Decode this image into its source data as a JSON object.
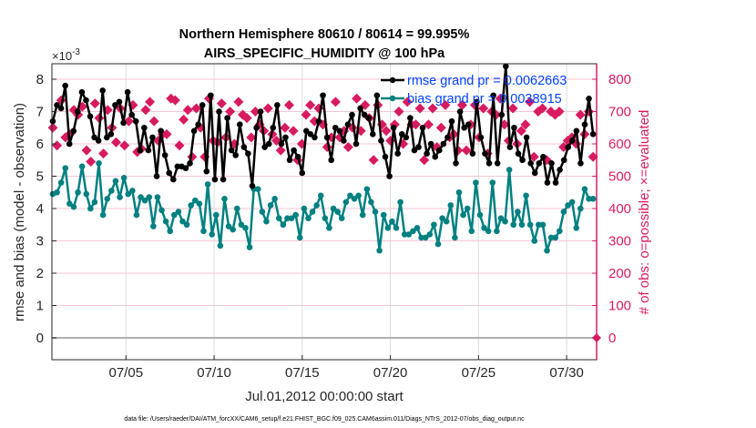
{
  "chart_data": {
    "type": "line",
    "title": [
      "Northern Hemisphere 80610 / 80614 = 99.995%",
      "AIRS_SPECIFIC_HUMIDITY @ 100 hPa"
    ],
    "xlabel": "Jul.01,2012 00:00:00 start",
    "ylabel_left": "rmse and bias (model - observation)",
    "ylabel_right": "# of obs: o=possible; ×=evaluated",
    "left_exponent": "×10",
    "left_exponent_power": "-3",
    "xlim_days": [
      0.8,
      31.7
    ],
    "ylim_left": [
      -1.4,
      8.5
    ],
    "ylim_right": [
      -140,
      850
    ],
    "x_start_day": 0.85,
    "x_end_day": 31.5,
    "xticks": [
      {
        "day": 5,
        "label": "07/05"
      },
      {
        "day": 10,
        "label": "07/10"
      },
      {
        "day": 15,
        "label": "07/15"
      },
      {
        "day": 20,
        "label": "07/20"
      },
      {
        "day": 25,
        "label": "07/25"
      },
      {
        "day": 30,
        "label": "07/30"
      }
    ],
    "yticks_left": [
      "0",
      "1",
      "2",
      "3",
      "4",
      "5",
      "6",
      "7",
      "8"
    ],
    "yticks_right": [
      "0",
      "100",
      "200",
      "300",
      "400",
      "500",
      "600",
      "700",
      "800"
    ],
    "legend": [
      {
        "label": "rmse grand pr = 0.0062663",
        "color": "#000000"
      },
      {
        "label": "bias grand pr = 0.0038915",
        "color": "#008080"
      }
    ],
    "legend_text_color": "#0044ff",
    "right_color": "#d81b60",
    "series": [
      {
        "name": "rmse",
        "unit": "1e-3",
        "color": "#000000",
        "values": [
          6.7,
          7.2,
          7.1,
          7.8,
          6.0,
          6.4,
          7.0,
          7.6,
          7.35,
          6.85,
          6.2,
          6.1,
          7.65,
          6.2,
          6.3,
          7.2,
          7.3,
          6.65,
          7.6,
          6.9,
          6.7,
          5.8,
          6.5,
          5.8,
          6.2,
          5.0,
          6.4,
          5.65,
          5.1,
          4.9,
          5.3,
          5.3,
          5.25,
          5.4,
          6.4,
          6.6,
          7.2,
          5.15,
          7.5,
          4.9,
          7.0,
          4.9,
          6.8,
          5.8,
          5.65,
          6.6,
          5.9,
          5.7,
          4.7,
          6.5,
          7.0,
          5.9,
          6.0,
          6.5,
          7.2,
          6.0,
          6.2,
          5.5,
          5.8,
          5.6,
          5.1,
          6.4,
          6.3,
          6.2,
          6.7,
          7.5,
          6.2,
          5.5,
          6.5,
          6.4,
          6.1,
          6.6,
          6.9,
          6.0,
          7.1,
          6.9,
          6.8,
          6.3,
          7.5,
          6.1,
          5.6,
          5.0,
          6.5,
          5.7,
          6.3,
          6.2,
          6.8,
          5.8,
          5.9,
          6.5,
          5.7,
          6.0,
          5.6,
          5.8,
          6.0,
          6.2,
          6.7,
          5.4,
          7.0,
          6.5,
          6.6,
          5.7,
          7.3,
          6.2,
          5.7,
          5.4,
          7.5,
          5.4,
          6.9,
          8.4,
          5.9,
          6.5,
          5.7,
          5.5,
          6.2,
          5.4,
          5.1,
          5.4,
          5.6,
          4.8,
          5.4,
          4.8,
          5.2,
          5.5,
          5.9,
          6.1,
          6.4,
          5.4,
          6.6,
          7.4,
          6.3
        ]
      },
      {
        "name": "bias",
        "unit": "1e-3",
        "color": "#008080",
        "values": [
          4.45,
          4.5,
          4.8,
          5.25,
          4.15,
          4.05,
          4.5,
          5.3,
          4.45,
          4.0,
          4.2,
          5.4,
          3.8,
          4.3,
          4.55,
          4.85,
          4.35,
          4.95,
          4.45,
          4.55,
          3.8,
          4.35,
          4.25,
          4.35,
          3.45,
          4.35,
          3.95,
          3.6,
          3.3,
          3.8,
          3.9,
          3.6,
          3.5,
          4.1,
          4.25,
          4.15,
          3.3,
          4.75,
          3.2,
          3.8,
          2.85,
          4.3,
          3.45,
          3.35,
          4.0,
          3.5,
          3.4,
          2.8,
          4.6,
          4.6,
          3.9,
          3.6,
          4.1,
          4.3,
          3.7,
          3.5,
          3.7,
          3.7,
          3.8,
          3.1,
          4.0,
          3.7,
          3.9,
          4.1,
          4.4,
          3.7,
          3.4,
          4.0,
          3.9,
          3.7,
          4.2,
          4.4,
          4.3,
          4.4,
          3.8,
          4.6,
          4.2,
          3.9,
          2.7,
          3.8,
          3.4,
          3.6,
          3.4,
          4.2,
          3.2,
          3.2,
          3.3,
          3.4,
          3.1,
          3.1,
          3.2,
          3.5,
          2.9,
          3.7,
          3.6,
          4.1,
          3.1,
          4.5,
          3.8,
          4.0,
          3.3,
          4.8,
          3.8,
          3.4,
          3.3,
          4.8,
          3.3,
          3.7,
          3.6,
          5.2,
          3.5,
          3.9,
          3.5,
          4.4,
          3.5,
          3.0,
          3.5,
          3.5,
          2.7,
          3.1,
          3.1,
          3.3,
          3.9,
          4.1,
          4.2,
          3.4,
          4.0,
          4.6,
          4.3,
          4.3
        ]
      },
      {
        "name": "obs_evaluated",
        "unit": "count",
        "color": "#d81b60",
        "values": [
          650,
          595,
          735,
          620,
          630,
          705,
          690,
          715,
          580,
          545,
          725,
          680,
          570,
          705,
          650,
          605,
          710,
          595,
          670,
          720,
          575,
          585,
          705,
          730,
          670,
          610,
          630,
          630,
          740,
          735,
          595,
          675,
          705,
          560,
          710,
          650,
          560,
          740,
          610,
          605,
          725,
          620,
          700,
          600,
          730,
          690,
          680,
          620,
          700,
          660,
          640,
          710,
          630,
          610,
          580,
          650,
          720,
          640,
          550,
          600,
          690,
          720,
          670,
          710,
          660,
          590,
          620,
          730,
          620,
          640,
          590,
          650,
          740,
          640,
          720,
          680,
          550,
          720,
          660,
          640,
          610,
          660,
          700,
          600,
          730,
          660,
          660,
          710,
          550,
          660,
          710,
          590,
          650,
          720,
          620,
          630,
          580,
          720,
          580,
          660,
          720,
          620,
          710,
          570,
          700,
          690,
          740,
          660,
          610,
          710,
          600,
          640,
          660,
          730,
          560,
          700,
          710,
          550,
          700,
          690,
          700,
          590,
          610,
          620,
          600,
          690,
          630,
          700,
          560
        ]
      },
      {
        "name": "obs_possible_end",
        "unit": "count",
        "color": "#d81b60",
        "values": [
          0
        ]
      }
    ]
  },
  "footer": {
    "data_file": "data file: /Users/raeder/DAI/ATM_forcXX/CAM6_setup/f.e21.FHIST_BGC.f09_025.CAM6assim.011/Diags_NTrS_2012-07/obs_diag_output.nc"
  }
}
